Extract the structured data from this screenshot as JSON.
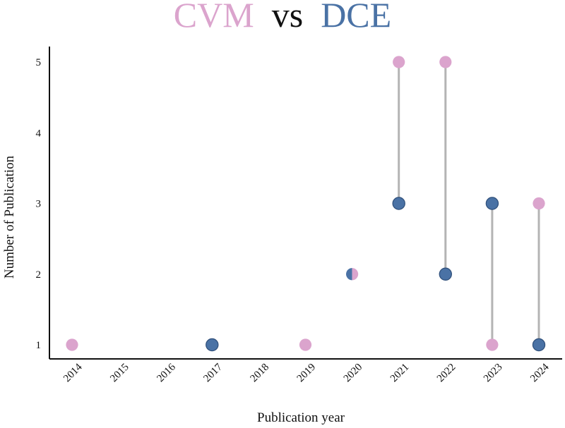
{
  "chart_data": {
    "type": "dumbbell",
    "title": {
      "parts": [
        {
          "text": "CVM",
          "color": "#dba4cd"
        },
        {
          "text": " vs ",
          "color": "#111111"
        },
        {
          "text": "DCE",
          "color": "#4a72a5"
        }
      ]
    },
    "xlabel": "Publication year",
    "ylabel": "Number of Publication",
    "categories": [
      "2014",
      "2015",
      "2016",
      "2017",
      "2018",
      "2019",
      "2020",
      "2021",
      "2022",
      "2023",
      "2024"
    ],
    "y_ticks": [
      1,
      2,
      3,
      4,
      5
    ],
    "ylim": [
      0.8,
      5.2
    ],
    "grid": false,
    "series": [
      {
        "name": "CVM",
        "color": "#dba4cd",
        "values": [
          1,
          null,
          null,
          null,
          null,
          1,
          2,
          5,
          5,
          1,
          3
        ]
      },
      {
        "name": "DCE",
        "color": "#4a72a5",
        "values": [
          null,
          null,
          null,
          1,
          null,
          null,
          2,
          3,
          2,
          3,
          1
        ]
      }
    ],
    "connector_color": "#b4b4b4"
  }
}
